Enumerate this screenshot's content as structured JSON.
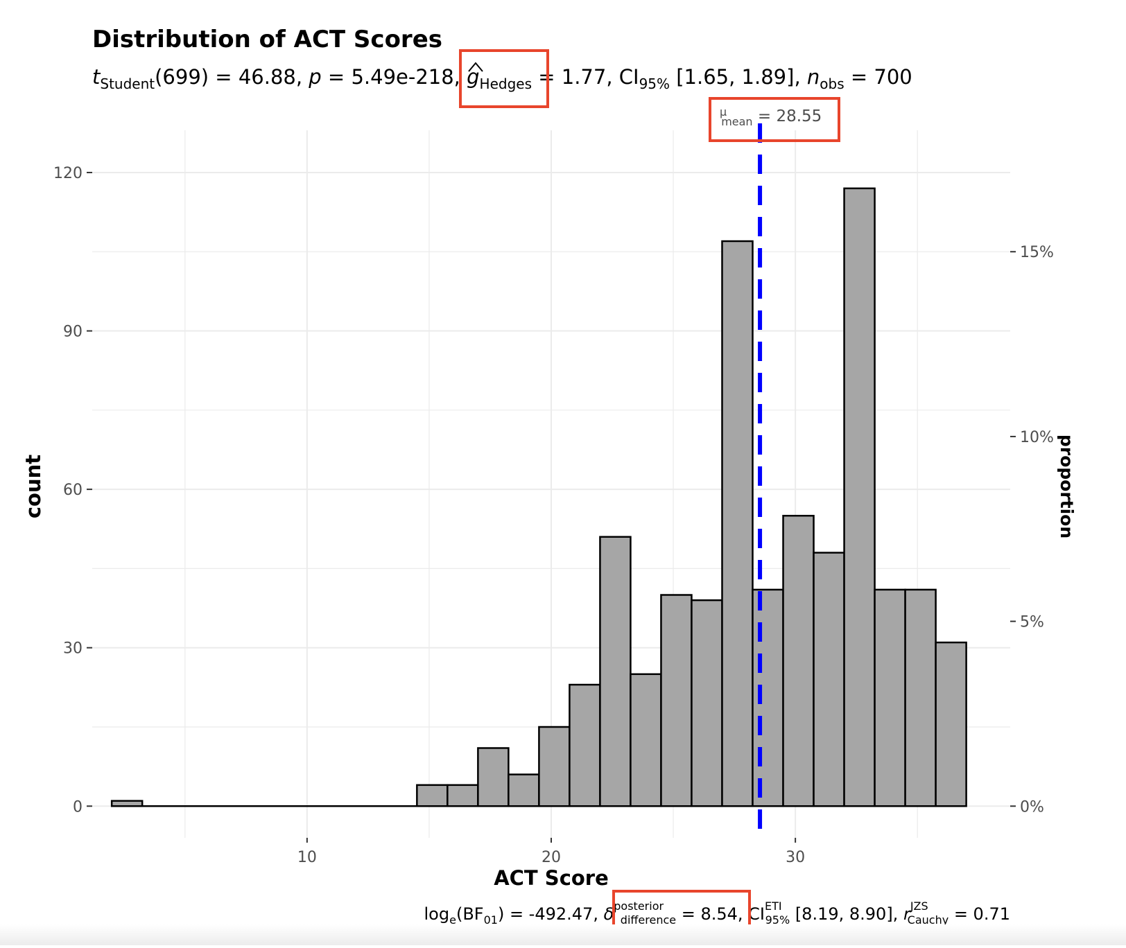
{
  "chart_data": {
    "type": "bar",
    "title": "Distribution of ACT Scores",
    "xlabel": "ACT Score",
    "ylabel": "count",
    "y2label": "proportion",
    "xlim": [
      1.2,
      38.8
    ],
    "ylim": [
      -6,
      128
    ],
    "x_ticks": [
      10,
      20,
      30
    ],
    "y_ticks": [
      0,
      30,
      60,
      90,
      120
    ],
    "y2_ticks": [
      {
        "label": "0%",
        "value": 0
      },
      {
        "label": "5%",
        "value": 35
      },
      {
        "label": "10%",
        "value": 70
      },
      {
        "label": "15%",
        "value": 105
      }
    ],
    "grid": true,
    "bins": [
      {
        "x0": 2.0,
        "x1": 3.25,
        "count": 1
      },
      {
        "x0": 3.25,
        "x1": 4.5,
        "count": 0
      },
      {
        "x0": 4.5,
        "x1": 5.75,
        "count": 0
      },
      {
        "x0": 5.75,
        "x1": 7.0,
        "count": 0
      },
      {
        "x0": 7.0,
        "x1": 8.25,
        "count": 0
      },
      {
        "x0": 8.25,
        "x1": 9.5,
        "count": 0
      },
      {
        "x0": 9.5,
        "x1": 10.75,
        "count": 0
      },
      {
        "x0": 10.75,
        "x1": 12.0,
        "count": 0
      },
      {
        "x0": 12.0,
        "x1": 13.25,
        "count": 0
      },
      {
        "x0": 13.25,
        "x1": 14.5,
        "count": 0
      },
      {
        "x0": 14.5,
        "x1": 15.75,
        "count": 4
      },
      {
        "x0": 15.75,
        "x1": 17.0,
        "count": 4
      },
      {
        "x0": 17.0,
        "x1": 18.25,
        "count": 11
      },
      {
        "x0": 18.25,
        "x1": 19.5,
        "count": 6
      },
      {
        "x0": 19.5,
        "x1": 20.75,
        "count": 15
      },
      {
        "x0": 20.75,
        "x1": 22.0,
        "count": 23
      },
      {
        "x0": 22.0,
        "x1": 23.25,
        "count": 51
      },
      {
        "x0": 23.25,
        "x1": 24.5,
        "count": 25
      },
      {
        "x0": 24.5,
        "x1": 25.75,
        "count": 40
      },
      {
        "x0": 25.75,
        "x1": 27.0,
        "count": 39
      },
      {
        "x0": 27.0,
        "x1": 28.25,
        "count": 107
      },
      {
        "x0": 28.25,
        "x1": 29.5,
        "count": 41
      },
      {
        "x0": 29.5,
        "x1": 30.75,
        "count": 55
      },
      {
        "x0": 30.75,
        "x1": 32.0,
        "count": 48
      },
      {
        "x0": 32.0,
        "x1": 33.25,
        "count": 117
      },
      {
        "x0": 33.25,
        "x1": 34.5,
        "count": 41
      },
      {
        "x0": 34.5,
        "x1": 35.75,
        "count": 41
      },
      {
        "x0": 35.75,
        "x1": 37.0,
        "count": 31
      }
    ],
    "mean_line": {
      "value": 28.55,
      "color": "#0000ff",
      "label_value": "28.55"
    },
    "bar_fill": "#a6a6a6",
    "bar_stroke": "#000000",
    "highlight_color": "#e8452c"
  },
  "stats": {
    "top": {
      "t_sym": "t",
      "t_sub": "Student",
      "t_df": "(699)",
      "t_val": " = 46.88, ",
      "p_sym": "p",
      "p_val": " = 5.49e-218, ",
      "g_sym": "g",
      "g_sub": "Hedges",
      "g_val": " = 1.77, CI",
      "ci_sub": "95%",
      "ci_val": " [1.65, 1.89], ",
      "n_sym": "n",
      "n_sub": "obs",
      "n_val": " = 700"
    },
    "mean_label": {
      "mu_sym": "μ",
      "mu_sub": "mean",
      "mu_val": " = 28.55"
    },
    "bottom": {
      "log_text": "log",
      "log_sub": "e",
      "bf_text": "(BF",
      "bf_sub": "01",
      "bf_val": ") = -492.47, ",
      "delta_sym": "δ",
      "delta_sup": "posterior",
      "delta_sub": "difference",
      "delta_val": " = 8.54, CI",
      "eti_sup": "ETI",
      "eti_sub": "95%",
      "eti_val": " [8.19, 8.90], ",
      "r_sym": "r",
      "r_sup": "JZS",
      "r_sub": "Cauchy",
      "r_val": " = 0.71"
    }
  }
}
